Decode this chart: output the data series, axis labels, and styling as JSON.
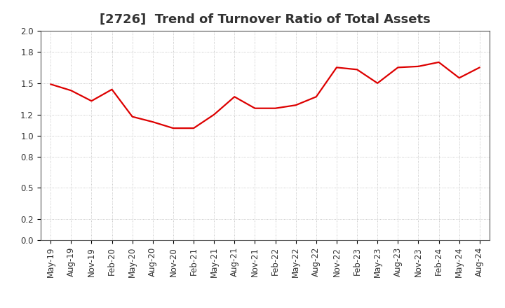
{
  "title": "[2726]  Trend of Turnover Ratio of Total Assets",
  "x_labels": [
    "May-19",
    "Aug-19",
    "Nov-19",
    "Feb-20",
    "May-20",
    "Aug-20",
    "Nov-20",
    "Feb-21",
    "May-21",
    "Aug-21",
    "Nov-21",
    "Feb-22",
    "May-22",
    "Aug-22",
    "Nov-22",
    "Feb-23",
    "May-23",
    "Aug-23",
    "Nov-23",
    "Feb-24",
    "May-24",
    "Aug-24"
  ],
  "y_values": [
    1.49,
    1.43,
    1.33,
    1.44,
    1.18,
    1.13,
    1.07,
    1.07,
    1.2,
    1.37,
    1.26,
    1.26,
    1.29,
    1.37,
    1.65,
    1.63,
    1.5,
    1.65,
    1.66,
    1.7,
    1.55,
    1.65
  ],
  "line_color": "#dd0000",
  "background_color": "#ffffff",
  "grid_color": "#999999",
  "ylim": [
    0.0,
    2.0
  ],
  "yticks": [
    0.0,
    0.2,
    0.5,
    0.8,
    1.0,
    1.2,
    1.5,
    1.8,
    2.0
  ],
  "title_fontsize": 13,
  "tick_fontsize": 8.5,
  "line_width": 1.6,
  "title_color": "#333333"
}
